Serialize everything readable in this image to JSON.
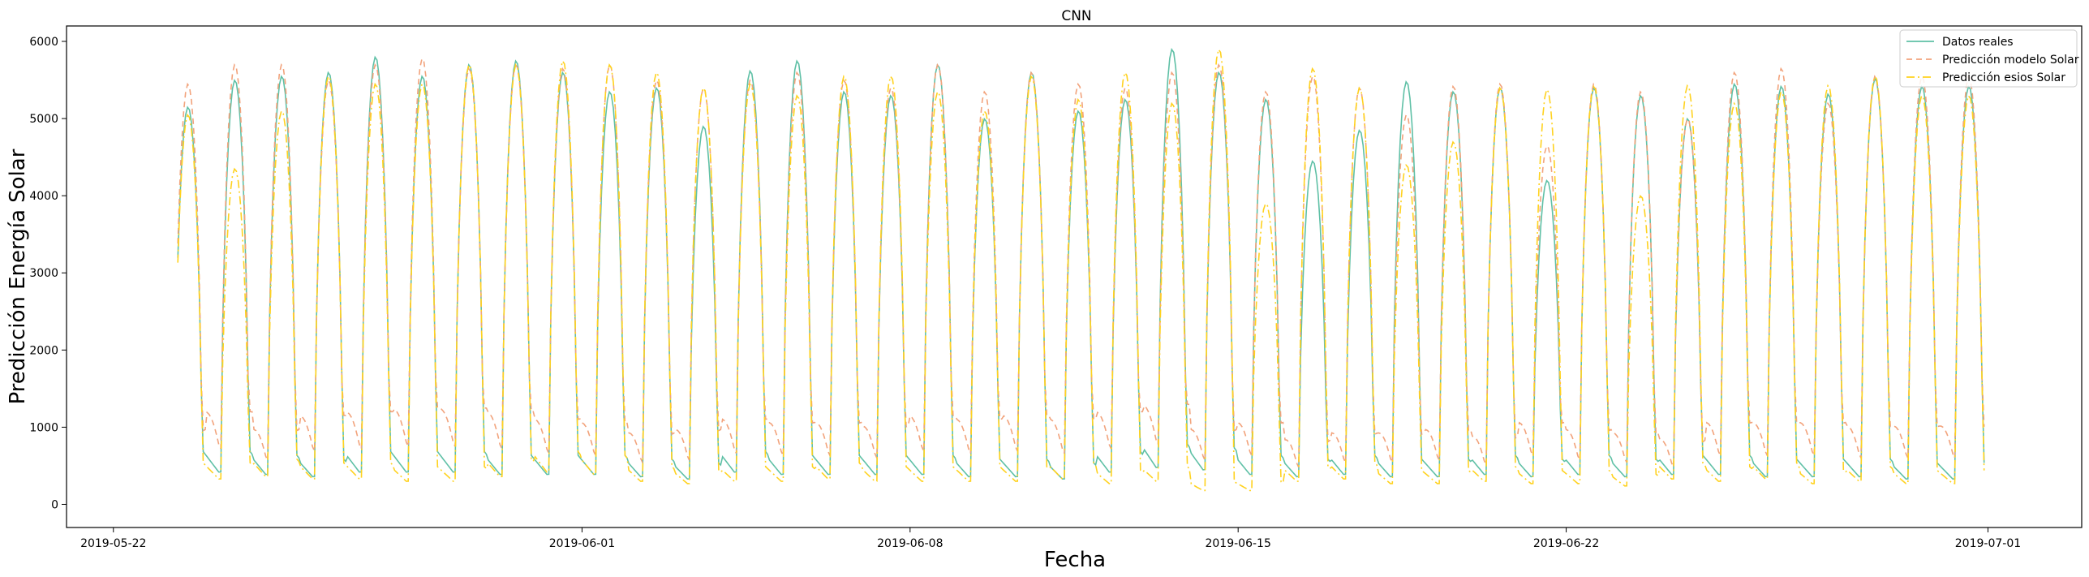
{
  "chart_data": {
    "type": "line",
    "title": "CNN",
    "xlabel": "Fecha",
    "ylabel": "Predicción Energía Solar",
    "xlim": [
      "2019-05-21",
      "2019-07-03"
    ],
    "ylim": [
      -300,
      6200
    ],
    "x_tick_labels": [
      "2019-05-22",
      "2019-06-01",
      "2019-06-08",
      "2019-06-15",
      "2019-06-22",
      "2019-07-01"
    ],
    "y_tick_labels": [
      "0",
      "1000",
      "2000",
      "3000",
      "4000",
      "5000",
      "6000"
    ],
    "grid": false,
    "legend_position": "top-right",
    "x_start": "2019-05-23T09:00",
    "x_end": "2019-06-30T22:00",
    "x_step_hours": 1,
    "series": [
      {
        "name": "Datos reales",
        "color": "#5fc0a6",
        "dash": "solid",
        "daily_peaks": [
          5150,
          5500,
          5550,
          5600,
          5800,
          5550,
          5700,
          5750,
          5600,
          5350,
          5400,
          4900,
          5620,
          5750,
          5350,
          5300,
          5700,
          5000,
          5600,
          5100,
          5250,
          5900,
          5600,
          5250,
          4450,
          4850,
          5480,
          5350,
          5400,
          4200,
          5400,
          5300,
          5000,
          5450,
          5420,
          5320,
          5520,
          5420
        ],
        "daily_night_base": [
          700,
          700,
          650,
          600,
          700,
          700,
          700,
          650,
          650,
          650,
          600,
          550,
          700,
          650,
          650,
          650,
          650,
          600,
          600,
          550,
          700,
          800,
          750,
          650,
          600,
          650,
          600,
          600,
          650,
          600,
          650,
          600,
          650,
          650,
          600,
          600,
          600,
          550
        ]
      },
      {
        "name": "Predicción modelo Solar",
        "color": "#f2a37c",
        "dash": "dashed",
        "daily_peaks": [
          5450,
          5700,
          5700,
          5500,
          5700,
          5780,
          5650,
          5700,
          5650,
          5700,
          5500,
          5400,
          5500,
          5600,
          5500,
          5400,
          5700,
          5350,
          5600,
          5450,
          5400,
          5600,
          5700,
          5350,
          5550,
          5400,
          5050,
          5420,
          5450,
          4650,
          5450,
          5350,
          5000,
          5600,
          5650,
          5200,
          5550,
          5550
        ],
        "daily_night_base": [
          950,
          1200,
          950,
          1150,
          1200,
          1250,
          1250,
          1200,
          1100,
          1050,
          900,
          950,
          1100,
          1050,
          1050,
          1000,
          1150,
          1100,
          1150,
          1100,
          1200,
          1300,
          950,
          1050,
          800,
          900,
          900,
          950,
          850,
          1050,
          950,
          900,
          800,
          1050,
          1050,
          1050,
          1000,
          1000
        ]
      },
      {
        "name": "Predicción esios Solar",
        "color": "#ffd21f",
        "dash": "dashdot",
        "daily_peaks": [
          5050,
          4350,
          5100,
          5550,
          5450,
          5450,
          5700,
          5700,
          5750,
          5700,
          5600,
          5400,
          5450,
          5300,
          5550,
          5550,
          5350,
          5100,
          5550,
          5250,
          5600,
          5200,
          5900,
          3900,
          5650,
          5400,
          4400,
          4700,
          5400,
          5380,
          5420,
          4000,
          5430,
          5200,
          5350,
          5430,
          5550,
          5300
        ],
        "daily_night_base": [
          550,
          550,
          600,
          550,
          550,
          500,
          500,
          600,
          700,
          650,
          500,
          450,
          500,
          500,
          550,
          500,
          500,
          500,
          500,
          550,
          450,
          500,
          300,
          300,
          500,
          550,
          450,
          450,
          500,
          450,
          450,
          400,
          550,
          500,
          550,
          450,
          500,
          450
        ]
      }
    ]
  }
}
